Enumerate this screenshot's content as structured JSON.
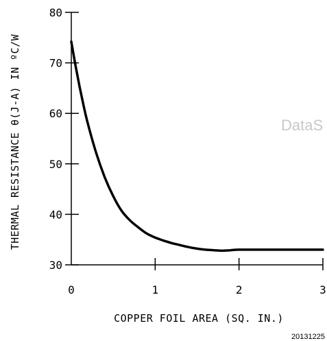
{
  "chart_data": {
    "type": "line",
    "title": "",
    "xlabel": "COPPER FOIL AREA (SQ. IN.)",
    "ylabel": "THERMAL RESISTANCE θ(J-A) IN ºC/W",
    "xlim": [
      0,
      3
    ],
    "ylim": [
      30,
      80
    ],
    "x_ticks": [
      0,
      1,
      2,
      3
    ],
    "x_tick_labels": [
      "0",
      "1",
      "2",
      "3"
    ],
    "y_ticks": [
      30,
      40,
      50,
      60,
      70,
      80
    ],
    "y_tick_labels": [
      "30",
      "40",
      "50",
      "60",
      "70",
      "80"
    ],
    "grid": false,
    "series": [
      {
        "x": [
          0.0,
          0.05,
          0.1,
          0.15,
          0.2,
          0.3,
          0.4,
          0.5,
          0.6,
          0.7,
          0.8,
          0.9,
          1.0,
          1.1,
          1.2,
          1.3,
          1.4,
          1.5,
          1.6,
          1.7,
          1.8,
          1.9,
          2.0,
          2.2,
          2.4,
          2.6,
          2.8,
          3.0
        ],
        "values": [
          74.2,
          69.5,
          65.2,
          61.3,
          57.8,
          52.0,
          47.3,
          43.6,
          40.7,
          38.8,
          37.4,
          36.2,
          35.4,
          34.8,
          34.3,
          33.9,
          33.5,
          33.2,
          33.0,
          32.9,
          32.8,
          32.9,
          33.0,
          33.0,
          33.0,
          33.0,
          33.0,
          33.0
        ]
      }
    ]
  },
  "watermark": "DataS",
  "figure_id": "20131225"
}
